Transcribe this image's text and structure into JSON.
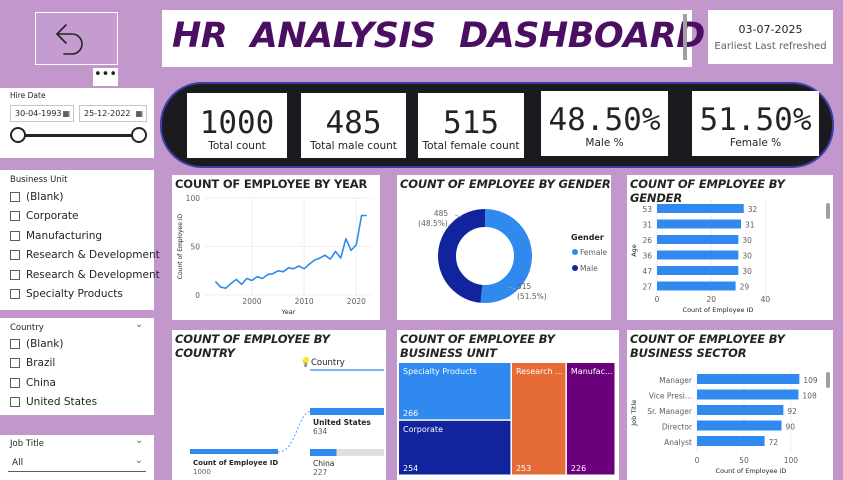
{
  "header": {
    "title": "HR  ANALYSIS  DASHBOARD",
    "date": "03-07-2025",
    "refresh_label": "Earliest Last refreshed",
    "back_icon": "undo-arrow-icon",
    "more_icon": "ellipsis-icon"
  },
  "kpis": [
    {
      "value": "1000",
      "label": "Total count"
    },
    {
      "value": "485",
      "label": "Total male count"
    },
    {
      "value": "515",
      "label": "Total female count"
    },
    {
      "value": "48.50%",
      "label": "Male %"
    },
    {
      "value": "51.50%",
      "label": "Female %"
    }
  ],
  "hire_date": {
    "label": "Hire Date",
    "start": "30-04-1993",
    "end": "25-12-2022",
    "calendar_icon": "calendar-icon"
  },
  "business_unit_slicer": {
    "label": "Business Unit",
    "items": [
      "(Blank)",
      "Corporate",
      "Manufacturing",
      "Research & Development",
      "Research & Development",
      "Specialty Products"
    ]
  },
  "country_slicer": {
    "label": "Country",
    "items": [
      "(Blank)",
      "Brazil",
      "China",
      "United States"
    ]
  },
  "job_title_slicer": {
    "label": "Job Title",
    "selected": "All"
  },
  "colors": {
    "background": "#c197cc",
    "title": "#4b0f62",
    "kpi_band": "#1b1a1f",
    "blue": "#2f89ee",
    "navy": "#12239e",
    "orange": "#e66c37",
    "purple": "#6b007b"
  },
  "chart_data": [
    {
      "type": "line",
      "title": "COUNT OF EMPLOYEE BY YEAR",
      "xlabel": "Year",
      "ylabel": "Count of Employee ID",
      "x_ticks": [
        "2000",
        "2010",
        "2020"
      ],
      "y_ticks": [
        "0",
        "50",
        "100"
      ],
      "ylim": [
        0,
        100
      ],
      "xlim": [
        1991,
        2023
      ],
      "grid": true,
      "x": [
        1993,
        1994,
        1995,
        1996,
        1997,
        1998,
        1999,
        2000,
        2001,
        2002,
        2003,
        2004,
        2005,
        2006,
        2007,
        2008,
        2009,
        2010,
        2011,
        2012,
        2013,
        2014,
        2015,
        2016,
        2017,
        2018,
        2019,
        2020,
        2021,
        2022
      ],
      "values": [
        14,
        8,
        7,
        12,
        16,
        11,
        17,
        15,
        19,
        17,
        21,
        22,
        25,
        24,
        28,
        27,
        30,
        27,
        32,
        36,
        38,
        41,
        37,
        45,
        38,
        58,
        46,
        52,
        82,
        82
      ]
    },
    {
      "type": "pie",
      "title": "COUNT OF EMPLOYEE BY GENDER",
      "legend_title": "Gender",
      "legend_position": "right",
      "categories": [
        "Female",
        "Male"
      ],
      "values": [
        515,
        485
      ],
      "data_labels": [
        "515\n(51.5%)",
        "485\n(48.5%)"
      ]
    },
    {
      "type": "bar",
      "title": "COUNT OF EMPLOYEE BY GENDER",
      "orientation": "horizontal",
      "ylabel": "Age",
      "xlabel": "Count of Employee ID",
      "categories": [
        "53",
        "31",
        "26",
        "36",
        "47",
        "27"
      ],
      "values": [
        32,
        31,
        30,
        30,
        30,
        29
      ],
      "x_ticks": [
        "0",
        "20",
        "40"
      ],
      "xlim": [
        0,
        45
      ]
    },
    {
      "type": "bar",
      "title": "COUNT OF EMPLOYEE BY COUNTRY",
      "subtype": "decomposition_tree",
      "root_label": "Count of Employee ID",
      "root_value": "1000",
      "split_label": "Country",
      "categories": [
        "United States",
        "China"
      ],
      "values": [
        634,
        227
      ]
    },
    {
      "type": "heatmap",
      "subtype": "treemap",
      "title": "COUNT OF EMPLOYEE BY BUSINESS UNIT",
      "categories": [
        "Specialty Products",
        "Corporate",
        "Research ...",
        "Manufac..."
      ],
      "values": [
        266,
        254,
        253,
        226
      ]
    },
    {
      "type": "bar",
      "title": "COUNT OF EMPLOYEE BY BUSINESS SECTOR",
      "orientation": "horizontal",
      "ylabel": "Job Title",
      "xlabel": "Count of Employee ID",
      "categories": [
        "Manager",
        "Vice Presi...",
        "Sr. Manager",
        "Director",
        "Analyst"
      ],
      "values": [
        109,
        108,
        92,
        90,
        72
      ],
      "x_ticks": [
        "0",
        "50",
        "100"
      ],
      "xlim": [
        0,
        115
      ]
    }
  ]
}
